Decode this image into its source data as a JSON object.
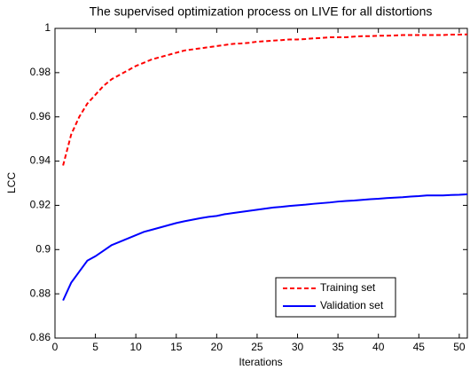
{
  "chart_data": {
    "type": "line",
    "title": "The supervised optimization process on LIVE for all distortions",
    "xlabel": "Iterations",
    "ylabel": "LCC",
    "x": [
      1,
      2,
      3,
      4,
      5,
      6,
      7,
      8,
      9,
      10,
      11,
      12,
      13,
      14,
      15,
      16,
      17,
      18,
      19,
      20,
      21,
      22,
      23,
      24,
      25,
      26,
      27,
      28,
      29,
      30,
      31,
      32,
      33,
      34,
      35,
      36,
      37,
      38,
      39,
      40,
      41,
      42,
      43,
      44,
      45,
      46,
      47,
      48,
      49,
      50,
      51
    ],
    "series": [
      {
        "name": "Training set",
        "color": "#ff0000",
        "dash": true,
        "values": [
          0.938,
          0.952,
          0.96,
          0.966,
          0.97,
          0.974,
          0.977,
          0.979,
          0.981,
          0.983,
          0.9845,
          0.986,
          0.987,
          0.988,
          0.989,
          0.99,
          0.9905,
          0.991,
          0.9915,
          0.992,
          0.9925,
          0.993,
          0.9932,
          0.9935,
          0.994,
          0.9942,
          0.9945,
          0.9947,
          0.995,
          0.995,
          0.9952,
          0.9955,
          0.9957,
          0.996,
          0.996,
          0.996,
          0.9963,
          0.9965,
          0.9965,
          0.9967,
          0.9967,
          0.9968,
          0.997,
          0.997,
          0.997,
          0.997,
          0.997,
          0.997,
          0.9972,
          0.9972,
          0.9973
        ]
      },
      {
        "name": "Validation set",
        "color": "#0000ff",
        "dash": false,
        "values": [
          0.877,
          0.885,
          0.89,
          0.895,
          0.897,
          0.8995,
          0.902,
          0.9035,
          0.905,
          0.9065,
          0.908,
          0.909,
          0.91,
          0.911,
          0.912,
          0.9128,
          0.9135,
          0.9142,
          0.9148,
          0.9152,
          0.916,
          0.9165,
          0.917,
          0.9175,
          0.918,
          0.9185,
          0.919,
          0.9193,
          0.9197,
          0.92,
          0.9203,
          0.9207,
          0.921,
          0.9213,
          0.9217,
          0.922,
          0.9222,
          0.9225,
          0.9228,
          0.923,
          0.9233,
          0.9235,
          0.9237,
          0.924,
          0.9242,
          0.9245,
          0.9245,
          0.9245,
          0.9247,
          0.9248,
          0.925
        ]
      }
    ],
    "xlim": [
      0,
      51
    ],
    "xticks": [
      0,
      5,
      10,
      15,
      20,
      25,
      30,
      35,
      40,
      45,
      50
    ],
    "ylim": [
      0.86,
      1
    ],
    "yticks": [
      0.86,
      0.88,
      0.9,
      0.92,
      0.94,
      0.96,
      0.98,
      1
    ],
    "grid": false,
    "legend": "lower-right"
  }
}
